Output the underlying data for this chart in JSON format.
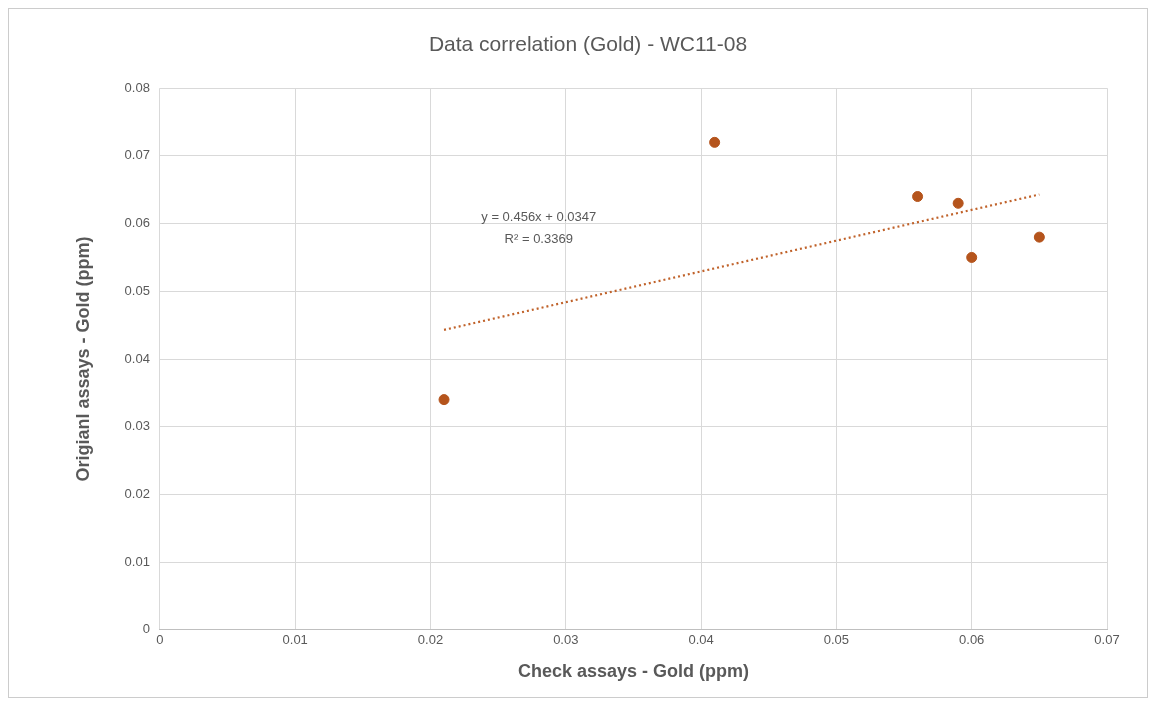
{
  "chart_data": {
    "type": "scatter",
    "title": "Data correlation (Gold) - WC11-08",
    "xlabel": "Check assays - Gold (ppm)",
    "ylabel": "Origianl assays - Gold (ppm)",
    "x": [
      0.021,
      0.041,
      0.056,
      0.059,
      0.06,
      0.065
    ],
    "series": [
      {
        "type": "scatter",
        "color": "#b5541c",
        "marker": "circle",
        "values": [
          0.034,
          0.072,
          0.064,
          0.063,
          0.055,
          0.058
        ]
      },
      {
        "type": "line",
        "color": "#c0622a",
        "line_style": "dotted",
        "marker": "none",
        "x": [
          0.021,
          0.065
        ],
        "values": [
          0.0443,
          0.0643
        ]
      }
    ],
    "xlim": [
      0,
      0.07
    ],
    "xticks": [
      0,
      0.01,
      0.02,
      0.03,
      0.04,
      0.05,
      0.06,
      0.07
    ],
    "ylim": [
      0,
      0.08
    ],
    "yticks": [
      0,
      0.01,
      0.02,
      0.03,
      0.04,
      0.05,
      0.06,
      0.07,
      0.08
    ],
    "grid": true,
    "legend": false,
    "annotations": [
      "y = 0.456x + 0.0347",
      "R² = 0.3369"
    ]
  }
}
